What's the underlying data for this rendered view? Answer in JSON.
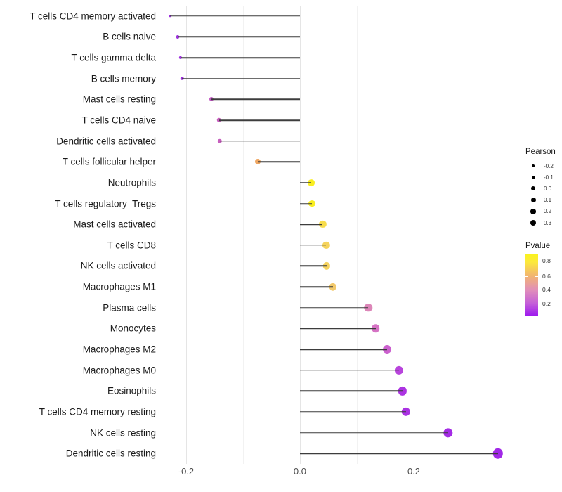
{
  "chart_data": {
    "type": "scatter",
    "variant": "lollipop",
    "title": "",
    "xlabel": "",
    "ylabel": "",
    "x_axis": {
      "range": [
        -0.2407,
        0.3642
      ],
      "major_ticks": [
        -0.2,
        0.0,
        0.2
      ],
      "major_tick_labels": [
        "-0.2",
        "0.0",
        "0.2"
      ],
      "minor_ticks": [
        -0.1,
        0.1,
        0.3
      ],
      "baseline": 0.0,
      "grid": "vertical only"
    },
    "encoding": {
      "size": "Pearson",
      "color": "Pvalue"
    },
    "points": [
      {
        "label": "T cells CD4 memory activated",
        "pearson": -0.228,
        "pvalue_est": 0.08,
        "color": "#9d2fde"
      },
      {
        "label": "B cells naive",
        "pearson": -0.215,
        "pvalue_est": 0.08,
        "color": "#9d2fde"
      },
      {
        "label": "T cells gamma delta",
        "pearson": -0.21,
        "pvalue_est": 0.08,
        "color": "#9e30df"
      },
      {
        "label": "B cells memory",
        "pearson": -0.207,
        "pvalue_est": 0.08,
        "color": "#9e30df"
      },
      {
        "label": "Mast cells resting",
        "pearson": -0.156,
        "pvalue_est": 0.24,
        "color": "#c257c3"
      },
      {
        "label": "T cells CD4 naive",
        "pearson": -0.142,
        "pvalue_est": 0.25,
        "color": "#c75fbe"
      },
      {
        "label": "Dendritic cells activated",
        "pearson": -0.141,
        "pvalue_est": 0.25,
        "color": "#c75fbe"
      },
      {
        "label": "T cells follicular helper",
        "pearson": -0.074,
        "pvalue_est": 0.55,
        "color": "#efa763"
      },
      {
        "label": "Neutrophils",
        "pearson": 0.02,
        "pvalue_est": 0.85,
        "color": "#f9ee21"
      },
      {
        "label": "T cells regulatory  Tregs",
        "pearson": 0.021,
        "pvalue_est": 0.85,
        "color": "#f9ee21"
      },
      {
        "label": "Mast cells activated",
        "pearson": 0.04,
        "pvalue_est": 0.72,
        "color": "#f7dc4b"
      },
      {
        "label": "T cells CD8",
        "pearson": 0.046,
        "pvalue_est": 0.68,
        "color": "#f5d35c"
      },
      {
        "label": "NK cells activated",
        "pearson": 0.047,
        "pvalue_est": 0.68,
        "color": "#f5d25e"
      },
      {
        "label": "Macrophages M1",
        "pearson": 0.058,
        "pvalue_est": 0.62,
        "color": "#f2c96c"
      },
      {
        "label": "Plasma cells",
        "pearson": 0.12,
        "pvalue_est": 0.35,
        "color": "#dc86b8"
      },
      {
        "label": "Monocytes",
        "pearson": 0.133,
        "pvalue_est": 0.3,
        "color": "#d573c4"
      },
      {
        "label": "Macrophages M2",
        "pearson": 0.153,
        "pvalue_est": 0.25,
        "color": "#cb60ce"
      },
      {
        "label": "Macrophages M0",
        "pearson": 0.174,
        "pvalue_est": 0.15,
        "color": "#b844dc"
      },
      {
        "label": "Eosinophils",
        "pearson": 0.18,
        "pvalue_est": 0.12,
        "color": "#ac34e2"
      },
      {
        "label": "T cells CD4 memory resting",
        "pearson": 0.186,
        "pvalue_est": 0.12,
        "color": "#aa31e3"
      },
      {
        "label": "NK cells resting",
        "pearson": 0.26,
        "pvalue_est": 0.1,
        "color": "#a42be5"
      },
      {
        "label": "Dendritic cells resting",
        "pearson": 0.348,
        "pvalue_est": 0.09,
        "color": "#a128e7"
      }
    ]
  },
  "legends": {
    "pearson": {
      "title": "Pearson",
      "entries": [
        {
          "label": "-0.2",
          "diameter": 3.5
        },
        {
          "label": "-0.1",
          "diameter": 5
        },
        {
          "label": "0.0",
          "diameter": 6
        },
        {
          "label": "0.1",
          "diameter": 7
        },
        {
          "label": "0.2",
          "diameter": 7.5
        },
        {
          "label": "0.3",
          "diameter": 8.5
        }
      ]
    },
    "pvalue": {
      "title": "Pvalue",
      "ticks": [
        {
          "label": "0.8",
          "pos_pct": 10.5
        },
        {
          "label": "0.6",
          "pos_pct": 35
        },
        {
          "label": "0.4",
          "pos_pct": 57
        },
        {
          "label": "0.2",
          "pos_pct": 79
        }
      ],
      "gradient_stops": [
        {
          "color": "#faf21f",
          "at_pct": 0
        },
        {
          "color": "#fce93b",
          "at_pct": 12
        },
        {
          "color": "#f2b472",
          "at_pct": 35
        },
        {
          "color": "#e18fb9",
          "at_pct": 57
        },
        {
          "color": "#c45fd8",
          "at_pct": 79
        },
        {
          "color": "#9c17ef",
          "at_pct": 100
        }
      ]
    }
  }
}
